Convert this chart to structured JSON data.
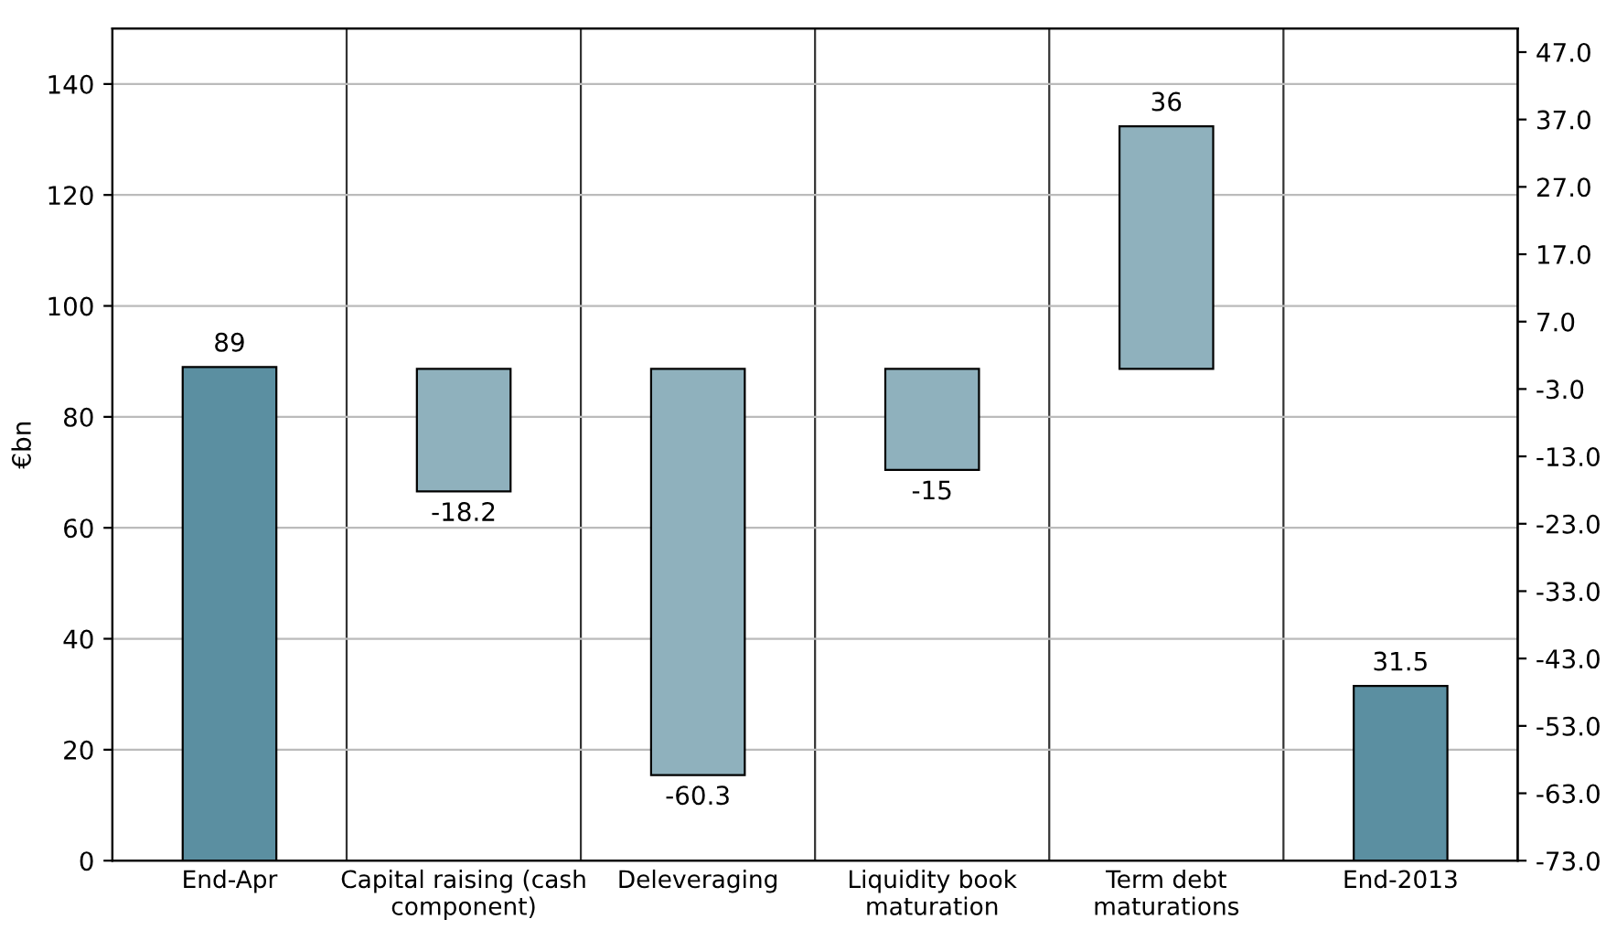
{
  "chart_data": {
    "type": "bar",
    "ylabel": "€bn",
    "categories": [
      "End-Apr",
      "Capital raising (cash\ncomponent)",
      "Deleveraging",
      "Liquidity book\nmaturation",
      "Term debt\nmaturations",
      "End-2013"
    ],
    "series": [
      {
        "color": "#5b8fa1",
        "values": [
          89,
          null,
          null,
          null,
          null,
          31.5
        ]
      },
      {
        "color": "#8fb1bd",
        "axis": "y2",
        "values": [
          null,
          -18.2,
          -60.3,
          -15,
          36,
          null
        ],
        "base": [
          null,
          0,
          0,
          0,
          0,
          null
        ]
      }
    ],
    "ylim": [
      0,
      150
    ],
    "yticks": [
      0,
      20,
      40,
      60,
      80,
      100,
      120,
      140
    ],
    "y2lim": [
      -73,
      50.5
    ],
    "y2ticks": [
      {
        "value": 47,
        "label": "47.0"
      },
      {
        "value": 37,
        "label": "37.0"
      },
      {
        "value": 27,
        "label": "27.0"
      },
      {
        "value": 17,
        "label": "17.0"
      },
      {
        "value": 7,
        "label": "7.0"
      },
      {
        "value": -3,
        "label": "-3.0"
      },
      {
        "value": -13,
        "label": "-13.0"
      },
      {
        "value": -23,
        "label": "-23.0"
      },
      {
        "value": -33,
        "label": "-33.0"
      },
      {
        "value": -43,
        "label": "-43.0"
      },
      {
        "value": -53,
        "label": "-53.0"
      },
      {
        "value": -63,
        "label": "-63.0"
      },
      {
        "value": -73,
        "label": "-73.0"
      }
    ],
    "grid": true,
    "data_labels": true,
    "legend": false
  }
}
